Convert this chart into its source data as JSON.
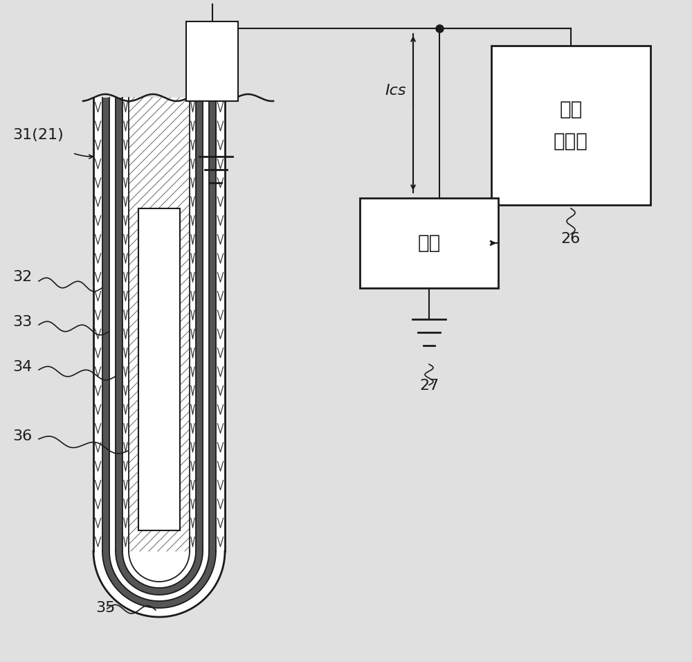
{
  "bg_color": "#e0e0e0",
  "line_color": "#1a1a1a",
  "labels": {
    "sensor": "31(21)",
    "layer32": "32",
    "layer33": "33",
    "layer34": "34",
    "layer35": "35",
    "layer36": "36",
    "circuit": "电路",
    "computer": "微型\n计算机",
    "current": "Ics",
    "ref26": "26",
    "ref27": "27"
  },
  "font_size_main": 16,
  "font_size_small": 14,
  "font_size_large": 20
}
